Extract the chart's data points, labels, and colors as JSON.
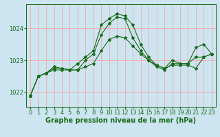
{
  "background_color": "#cce5f0",
  "grid_color": "#ff9999",
  "line_color": "#1a6b1a",
  "title": "Graphe pression niveau de la mer (hPa)",
  "tick_fontsize": 6,
  "title_fontsize": 7,
  "xlim": [
    -0.5,
    23.5
  ],
  "ylim": [
    1021.55,
    1024.75
  ],
  "yticks": [
    1022,
    1023,
    1024
  ],
  "xticks": [
    0,
    1,
    2,
    3,
    4,
    5,
    6,
    7,
    8,
    9,
    10,
    11,
    12,
    13,
    14,
    15,
    16,
    17,
    18,
    19,
    20,
    21,
    22,
    23
  ],
  "series1_x": [
    0,
    1,
    2,
    3,
    4,
    5,
    6,
    7,
    8,
    9,
    10,
    11,
    12,
    13,
    14,
    15,
    16,
    17,
    18,
    19,
    20,
    21,
    22,
    23
  ],
  "series1_y": [
    1021.9,
    1022.5,
    1022.6,
    1022.75,
    1022.75,
    1022.7,
    1022.7,
    1022.8,
    1022.9,
    1023.3,
    1023.65,
    1023.75,
    1023.7,
    1023.45,
    1023.2,
    1023.0,
    1022.85,
    1022.75,
    1022.85,
    1022.85,
    1022.85,
    1022.75,
    1023.1,
    1023.2
  ],
  "series2_x": [
    0,
    1,
    2,
    3,
    4,
    5,
    6,
    7,
    8,
    9,
    10,
    11,
    12,
    13,
    14,
    15,
    16,
    17,
    18,
    19,
    20,
    21,
    22,
    23
  ],
  "series2_y": [
    1021.9,
    1022.5,
    1022.6,
    1022.7,
    1022.7,
    1022.7,
    1022.7,
    1023.0,
    1023.2,
    1023.8,
    1024.15,
    1024.35,
    1024.3,
    1023.7,
    1023.3,
    1023.0,
    1022.8,
    1022.7,
    1022.9,
    1022.9,
    1022.9,
    1023.1,
    1023.1,
    1023.2
  ],
  "series3_x": [
    0,
    1,
    2,
    3,
    4,
    5,
    6,
    7,
    8,
    9,
    10,
    11,
    12,
    13,
    14,
    15,
    16,
    17,
    18,
    19,
    20,
    21,
    22,
    23
  ],
  "series3_y": [
    1021.9,
    1022.5,
    1022.6,
    1022.8,
    1022.75,
    1022.7,
    1022.9,
    1023.1,
    1023.3,
    1024.1,
    1024.3,
    1024.45,
    1024.38,
    1024.1,
    1023.5,
    1023.1,
    1022.85,
    1022.75,
    1023.0,
    1022.9,
    1022.9,
    1023.4,
    1023.5,
    1023.2
  ]
}
